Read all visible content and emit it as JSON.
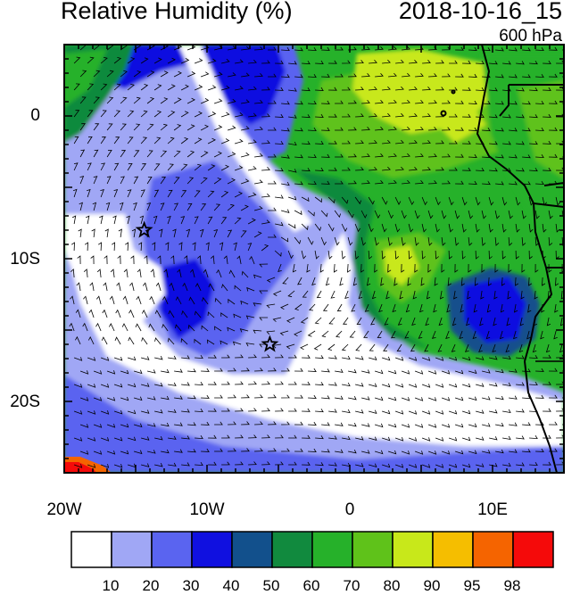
{
  "header": {
    "title": "Relative Humidity (%)",
    "datetime": "2018-10-16_15",
    "level": "600 hPa"
  },
  "axes": {
    "lat_labels": [
      "0",
      "10S",
      "20S"
    ],
    "lon_labels": [
      "20W",
      "10W",
      "0",
      "10E"
    ]
  },
  "colorbar": {
    "labels": [
      "10",
      "20",
      "30",
      "40",
      "50",
      "60",
      "70",
      "80",
      "90",
      "95",
      "98"
    ],
    "colors": [
      "#ffffff",
      "#a0a7f5",
      "#5a64f0",
      "#1010e0",
      "#12508c",
      "#118a3e",
      "#26b12a",
      "#5fc21a",
      "#c8e81a",
      "#f5be00",
      "#f56400",
      "#f50a0a"
    ]
  },
  "map": {
    "lon_range": [
      -20,
      15
    ],
    "lat_range": [
      -25,
      5
    ],
    "markers": [
      {
        "name": "star",
        "lon": -14.4,
        "lat": -8
      },
      {
        "name": "star",
        "lon": -5.6,
        "lat": -16
      }
    ]
  }
}
